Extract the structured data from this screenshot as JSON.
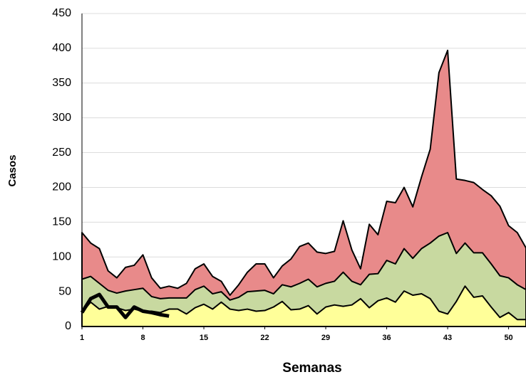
{
  "chart_data": {
    "type": "area",
    "xlabel": "Semanas",
    "ylabel": "Casos",
    "x": [
      1,
      2,
      3,
      4,
      5,
      6,
      7,
      8,
      9,
      10,
      11,
      12,
      13,
      14,
      15,
      16,
      17,
      18,
      19,
      20,
      21,
      22,
      23,
      24,
      25,
      26,
      27,
      28,
      29,
      30,
      31,
      32,
      33,
      34,
      35,
      36,
      37,
      38,
      39,
      40,
      41,
      42,
      43,
      44,
      45,
      46,
      47,
      48,
      49,
      50,
      51,
      52
    ],
    "series": [
      {
        "color": "#e88a8a",
        "values": [
          135,
          120,
          112,
          80,
          70,
          85,
          88,
          103,
          70,
          55,
          58,
          55,
          62,
          83,
          90,
          72,
          65,
          45,
          60,
          78,
          90,
          90,
          70,
          87,
          97,
          115,
          120,
          107,
          105,
          108,
          152,
          110,
          83,
          147,
          132,
          180,
          178,
          200,
          172,
          215,
          255,
          365,
          397,
          212,
          210,
          207,
          197,
          188,
          173,
          145,
          135,
          113
        ]
      },
      {
        "color": "#c8d9a0",
        "values": [
          68,
          72,
          62,
          52,
          48,
          51,
          53,
          55,
          43,
          40,
          41,
          41,
          41,
          53,
          58,
          47,
          50,
          38,
          42,
          50,
          51,
          52,
          47,
          60,
          57,
          62,
          68,
          57,
          62,
          65,
          78,
          65,
          60,
          75,
          76,
          95,
          90,
          112,
          98,
          112,
          120,
          130,
          135,
          105,
          120,
          106,
          106,
          90,
          73,
          70,
          60,
          53
        ]
      },
      {
        "color": "#ffff99",
        "values": [
          20,
          35,
          25,
          29,
          27,
          23,
          25,
          22,
          22,
          20,
          25,
          25,
          18,
          27,
          32,
          25,
          35,
          25,
          23,
          25,
          22,
          23,
          28,
          36,
          24,
          25,
          30,
          18,
          28,
          31,
          29,
          31,
          40,
          27,
          37,
          41,
          35,
          51,
          45,
          47,
          40,
          22,
          18,
          36,
          58,
          42,
          44,
          28,
          13,
          20,
          10,
          10
        ]
      },
      {
        "type": "line",
        "color": "#000000",
        "values": [
          20,
          40,
          46,
          28,
          28,
          13,
          28,
          22,
          20,
          17,
          15,
          null,
          null,
          null,
          null,
          null,
          null,
          null,
          null,
          null,
          null,
          null,
          null,
          null,
          null,
          null,
          null,
          null,
          null,
          null,
          null,
          null,
          null,
          null,
          null,
          null,
          null,
          null,
          null,
          null,
          null,
          null,
          null,
          null,
          null,
          null,
          null,
          null,
          null,
          null,
          null,
          null
        ]
      }
    ],
    "xlim": [
      1,
      52
    ],
    "xticks": [
      1,
      8,
      15,
      22,
      29,
      36,
      43,
      50
    ],
    "ylim": [
      0,
      450
    ],
    "yticks": [
      0,
      50,
      100,
      150,
      200,
      250,
      300,
      350,
      400,
      450
    ],
    "grid": true
  }
}
